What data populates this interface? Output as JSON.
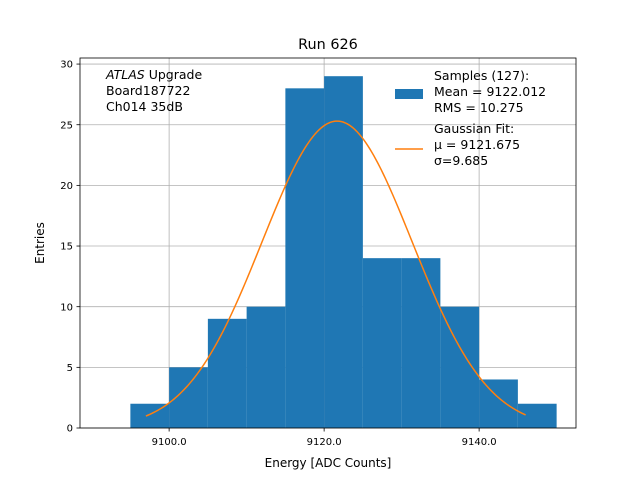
{
  "chart_data": {
    "type": "bar",
    "title": "Run 626",
    "xlabel": "Energy [ADC Counts]",
    "ylabel": "Entries",
    "xlim": [
      9088.5,
      9152.5
    ],
    "ylim": [
      0,
      30.5
    ],
    "grid": true,
    "xticks": [
      {
        "value": 9100,
        "label": "9100.0"
      },
      {
        "value": 9120,
        "label": "9120.0"
      },
      {
        "value": 9140,
        "label": "9140.0"
      }
    ],
    "yticks": [
      {
        "value": 0,
        "label": "0"
      },
      {
        "value": 5,
        "label": "5"
      },
      {
        "value": 10,
        "label": "10"
      },
      {
        "value": 15,
        "label": "15"
      },
      {
        "value": 20,
        "label": "20"
      },
      {
        "value": 25,
        "label": "25"
      },
      {
        "value": 30,
        "label": "30"
      }
    ],
    "histogram": {
      "color": "#1f77b4",
      "bins": [
        {
          "x0": 9095,
          "x1": 9100,
          "count": 2
        },
        {
          "x0": 9100,
          "x1": 9105,
          "count": 5
        },
        {
          "x0": 9105,
          "x1": 9110,
          "count": 9
        },
        {
          "x0": 9110,
          "x1": 9115,
          "count": 10
        },
        {
          "x0": 9115,
          "x1": 9120,
          "count": 28
        },
        {
          "x0": 9120,
          "x1": 9125,
          "count": 29
        },
        {
          "x0": 9125,
          "x1": 9130,
          "count": 14
        },
        {
          "x0": 9130,
          "x1": 9135,
          "count": 14
        },
        {
          "x0": 9135,
          "x1": 9140,
          "count": 10
        },
        {
          "x0": 9140,
          "x1": 9145,
          "count": 4
        },
        {
          "x0": 9145,
          "x1": 9150,
          "count": 2
        }
      ]
    },
    "fit": {
      "type": "gaussian",
      "color": "#ff7f0e",
      "mu": 9121.675,
      "sigma": 9.685,
      "amplitude": 25.3,
      "x_range": [
        9097,
        9146
      ]
    },
    "annotation_lines": [
      {
        "text": "ATLAS",
        "italic": true,
        "suffix": " Upgrade"
      },
      {
        "text": " Board187722",
        "italic": false,
        "suffix": ""
      },
      {
        "text": " Ch014 35dB",
        "italic": false,
        "suffix": ""
      }
    ],
    "legend": {
      "position": "top-right",
      "entries": [
        {
          "kind": "patch",
          "lines": [
            "Samples (127):",
            " Mean = 9122.012",
            " RMS = 10.275"
          ]
        },
        {
          "kind": "line",
          "lines": [
            "Gaussian Fit:",
            " μ = 9121.675",
            " σ=9.685"
          ]
        }
      ]
    }
  }
}
